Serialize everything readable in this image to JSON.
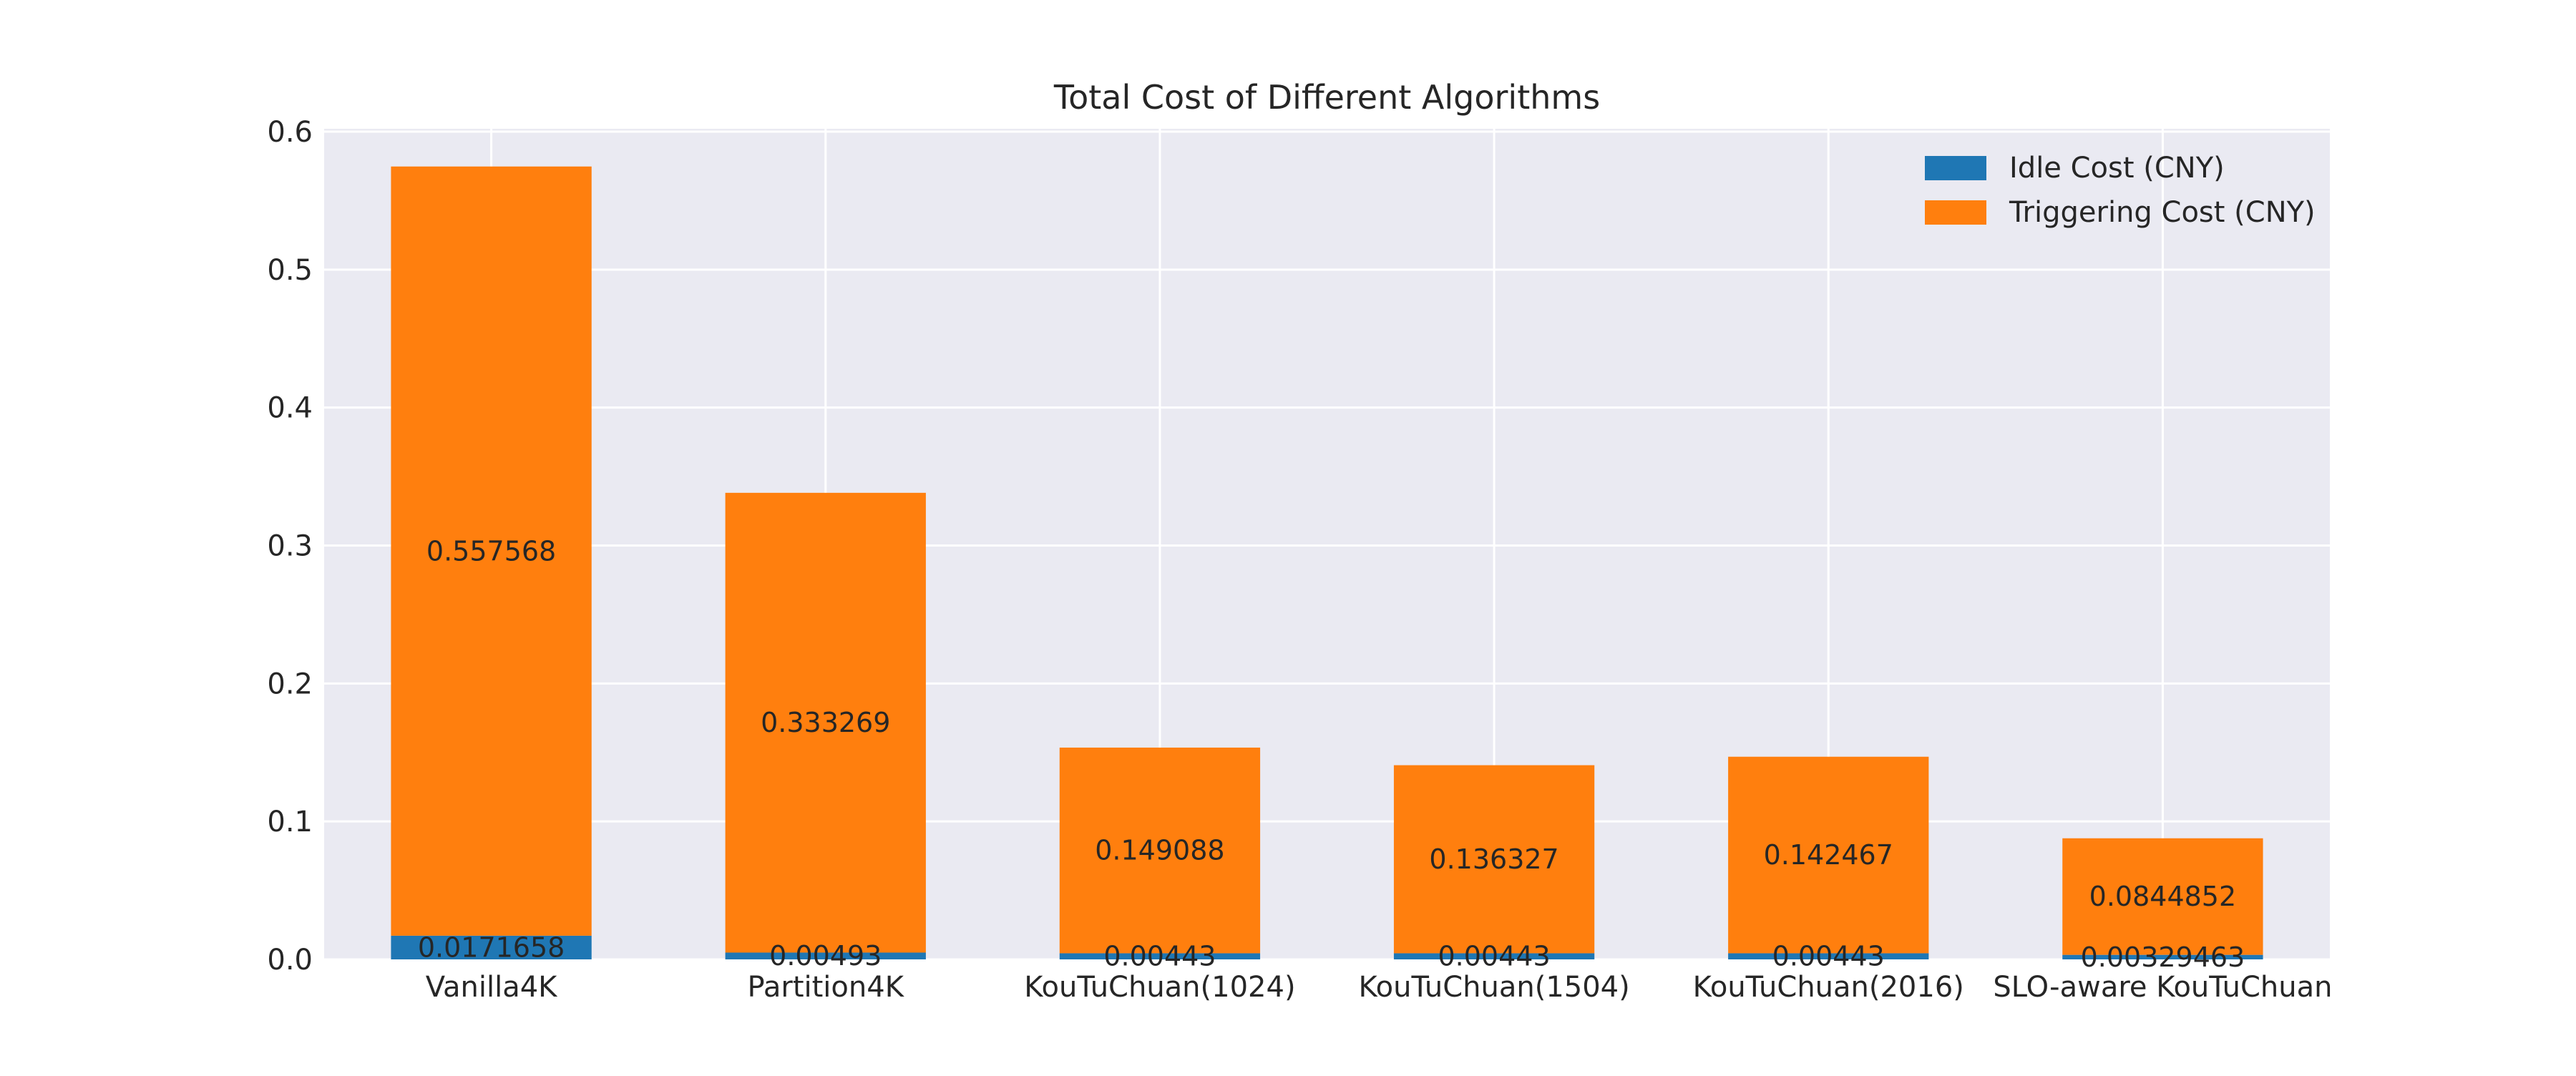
{
  "chart_data": {
    "type": "bar",
    "stacked": true,
    "title": "Total Cost of Different Algorithms",
    "xlabel": "",
    "ylabel": "",
    "categories": [
      "Vanilla4K",
      "Partition4K",
      "KouTuChuan(1024)",
      "KouTuChuan(1504)",
      "KouTuChuan(2016)",
      "SLO-aware KouTuChuan"
    ],
    "series": [
      {
        "name": "Idle Cost (CNY)",
        "color": "#1f77b4",
        "values": [
          0.0171658,
          0.00493,
          0.00443,
          0.00443,
          0.00443,
          0.00329463
        ],
        "labels": [
          "0.0171658",
          "0.00493",
          "0.00443",
          "0.00443",
          "0.00443",
          "0.00329463"
        ]
      },
      {
        "name": "Triggering Cost (CNY)",
        "color": "#ff7f0e",
        "values": [
          0.557568,
          0.333269,
          0.149088,
          0.136327,
          0.142467,
          0.0844852
        ],
        "labels": [
          "0.557568",
          "0.333269",
          "0.149088",
          "0.136327",
          "0.142467",
          "0.0844852"
        ]
      }
    ],
    "ylim": [
      0,
      0.6
    ],
    "yticks": [
      0.0,
      0.1,
      0.2,
      0.3,
      0.4,
      0.5,
      0.6
    ],
    "ytick_labels": [
      "0.0",
      "0.1",
      "0.2",
      "0.3",
      "0.4",
      "0.5",
      "0.6"
    ],
    "grid": true,
    "legend_position": "top-right",
    "colors": {
      "plot_background": "#eaeaf2",
      "grid": "#ffffff"
    }
  }
}
